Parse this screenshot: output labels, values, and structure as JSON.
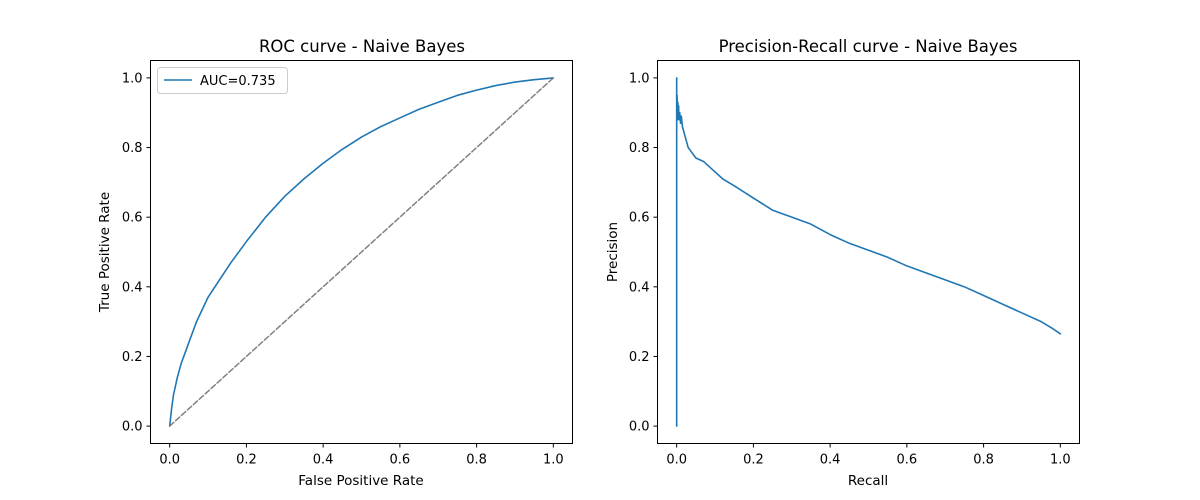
{
  "chart_data": [
    {
      "type": "line",
      "title": "ROC curve - Naive Bayes",
      "xlabel": "False Positive Rate",
      "ylabel": "True Positive Rate",
      "xlim": [
        -0.05,
        1.05
      ],
      "ylim": [
        -0.05,
        1.05
      ],
      "xticks": [
        "0.0",
        "0.2",
        "0.4",
        "0.6",
        "0.8",
        "1.0"
      ],
      "yticks": [
        "0.0",
        "0.2",
        "0.4",
        "0.6",
        "0.8",
        "1.0"
      ],
      "grid": false,
      "legend": {
        "position": "top-left"
      },
      "series": [
        {
          "name": "AUC=0.735",
          "color": "#1f77b4",
          "style": "solid",
          "x": [
            0.0,
            0.005,
            0.01,
            0.02,
            0.03,
            0.05,
            0.07,
            0.1,
            0.13,
            0.16,
            0.2,
            0.25,
            0.3,
            0.35,
            0.4,
            0.45,
            0.5,
            0.55,
            0.6,
            0.65,
            0.7,
            0.75,
            0.8,
            0.85,
            0.9,
            0.95,
            1.0
          ],
          "y": [
            0.0,
            0.05,
            0.09,
            0.14,
            0.18,
            0.24,
            0.3,
            0.37,
            0.42,
            0.47,
            0.53,
            0.6,
            0.66,
            0.71,
            0.755,
            0.795,
            0.83,
            0.86,
            0.885,
            0.91,
            0.93,
            0.95,
            0.965,
            0.978,
            0.988,
            0.995,
            1.0
          ]
        },
        {
          "color": "#808080",
          "style": "dashed",
          "x": [
            0.0,
            1.0
          ],
          "y": [
            0.0,
            1.0
          ]
        }
      ]
    },
    {
      "type": "line",
      "title": "Precision-Recall curve - Naive Bayes",
      "xlabel": "Recall",
      "ylabel": "Precision",
      "xlim": [
        -0.05,
        1.05
      ],
      "ylim": [
        -0.05,
        1.05
      ],
      "xticks": [
        "0.0",
        "0.2",
        "0.4",
        "0.6",
        "0.8",
        "1.0"
      ],
      "yticks": [
        "0.0",
        "0.2",
        "0.4",
        "0.6",
        "0.8",
        "1.0"
      ],
      "grid": false,
      "series": [
        {
          "color": "#1f77b4",
          "style": "solid",
          "x": [
            0.0,
            0.0,
            0.0,
            0.001,
            0.002,
            0.003,
            0.004,
            0.005,
            0.006,
            0.008,
            0.01,
            0.012,
            0.015,
            0.02,
            0.03,
            0.05,
            0.07,
            0.1,
            0.12,
            0.15,
            0.2,
            0.25,
            0.3,
            0.35,
            0.4,
            0.45,
            0.5,
            0.55,
            0.6,
            0.65,
            0.7,
            0.75,
            0.8,
            0.85,
            0.9,
            0.95,
            0.98,
            1.0
          ],
          "y": [
            0.0,
            1.0,
            0.93,
            0.95,
            0.88,
            0.93,
            0.9,
            0.92,
            0.88,
            0.9,
            0.87,
            0.89,
            0.86,
            0.84,
            0.8,
            0.77,
            0.76,
            0.73,
            0.71,
            0.69,
            0.655,
            0.62,
            0.6,
            0.58,
            0.55,
            0.525,
            0.505,
            0.485,
            0.46,
            0.44,
            0.42,
            0.4,
            0.375,
            0.35,
            0.325,
            0.3,
            0.28,
            0.265
          ]
        }
      ]
    }
  ]
}
